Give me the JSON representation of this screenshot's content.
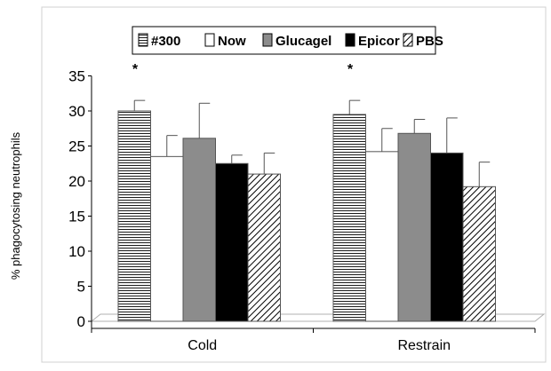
{
  "chart_data": {
    "type": "bar",
    "title": "",
    "xlabel": "",
    "ylabel": "% phagocytosing neutrophils",
    "ylim": [
      0,
      35
    ],
    "yticks": [
      0,
      5,
      10,
      15,
      20,
      25,
      30,
      35
    ],
    "categories": [
      "Cold",
      "Restrain"
    ],
    "series": [
      {
        "name": "#300",
        "values": [
          30,
          29.5
        ],
        "errors": [
          1.5,
          2
        ],
        "pattern": "horizontal-lines",
        "significance": [
          "*",
          "*"
        ]
      },
      {
        "name": "Now",
        "values": [
          23.5,
          24.2
        ],
        "errors": [
          3,
          3.3
        ],
        "pattern": "white",
        "significance": [
          "",
          ""
        ]
      },
      {
        "name": "Glucagel",
        "values": [
          26.1,
          26.8
        ],
        "errors": [
          5,
          2
        ],
        "pattern": "gray",
        "significance": [
          "",
          ""
        ]
      },
      {
        "name": "Epicor",
        "values": [
          22.5,
          24
        ],
        "errors": [
          1.2,
          5
        ],
        "pattern": "black",
        "significance": [
          "",
          ""
        ]
      },
      {
        "name": "PBS",
        "values": [
          21,
          19.2
        ],
        "errors": [
          3,
          3.5
        ],
        "pattern": "diagonal-hatch",
        "significance": [
          "",
          ""
        ]
      }
    ],
    "grid": false,
    "legend_position": "top"
  },
  "colors": {
    "gray_fill": "#8c8c8c",
    "black_fill": "#000000",
    "white_fill": "#ffffff",
    "stripe": "#000000"
  }
}
